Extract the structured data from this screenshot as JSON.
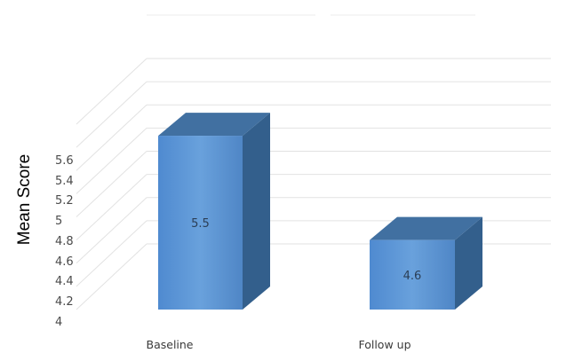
{
  "chart_data": {
    "type": "bar",
    "categories": [
      "Baseline",
      "Follow up"
    ],
    "values": [
      5.5,
      4.6
    ],
    "data_labels": [
      "5.5",
      "4.6"
    ],
    "title": "",
    "xlabel": "",
    "ylabel": "Mean Score",
    "ylim": [
      4,
      5.6
    ],
    "yticks": [
      "4",
      "4.2",
      "4.4",
      "4.6",
      "4.8",
      "5",
      "5.2",
      "5.4",
      "5.6"
    ],
    "style": "3d-column",
    "grid": true,
    "legend": "none",
    "colors": {
      "bar_front": "#5b93cf",
      "bar_top": "#4170a1",
      "bar_side": "#335f8c",
      "grid": "#e2e2e2"
    }
  }
}
